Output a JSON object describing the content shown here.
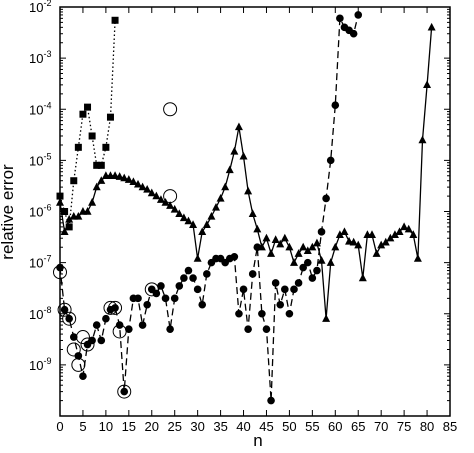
{
  "chart_data": {
    "type": "scatter",
    "title": "",
    "xlabel": "n",
    "ylabel": "relative error",
    "xlim": [
      0,
      85
    ],
    "ylim": [
      1e-10,
      0.01
    ],
    "yscale": "log",
    "grid": false,
    "x_ticks": [
      0,
      5,
      10,
      15,
      20,
      25,
      30,
      35,
      40,
      45,
      50,
      55,
      60,
      65,
      70,
      75,
      80,
      85
    ],
    "x_tick_labels": [
      "0",
      "5",
      "10",
      "15",
      "20",
      "25",
      "30",
      "35",
      "40",
      "45",
      "50",
      "55",
      "60",
      "65",
      "70",
      "75",
      "80",
      "85"
    ],
    "y_ticks": [
      1e-09,
      1e-08,
      1e-07,
      1e-06,
      1e-05,
      0.0001,
      0.001,
      0.01
    ],
    "y_tick_labels": [
      {
        "base": "10",
        "exp": "-9"
      },
      {
        "base": "10",
        "exp": "-8"
      },
      {
        "base": "10",
        "exp": "-7"
      },
      {
        "base": "10",
        "exp": "-6"
      },
      {
        "base": "10",
        "exp": "-5"
      },
      {
        "base": "10",
        "exp": "-4"
      },
      {
        "base": "10",
        "exp": "-3"
      },
      {
        "base": "10",
        "exp": "-2"
      }
    ],
    "series": [
      {
        "marker": "square",
        "line": "dotted",
        "points": [
          [
            0,
            2e-06
          ],
          [
            1,
            1e-06
          ],
          [
            2,
            5e-07
          ],
          [
            3,
            4e-06
          ],
          [
            4,
            1.8e-05
          ],
          [
            5,
            8e-05
          ],
          [
            6,
            0.00011
          ],
          [
            7,
            3e-05
          ],
          [
            8,
            8e-06
          ],
          [
            9,
            8e-06
          ],
          [
            10,
            1.8e-05
          ],
          [
            11,
            7e-05
          ],
          [
            12,
            0.0055
          ]
        ]
      },
      {
        "marker": "triangle",
        "line": "solid",
        "points": [
          [
            0,
            1.5e-06
          ],
          [
            1,
            4e-07
          ],
          [
            2,
            7e-07
          ],
          [
            3,
            8e-07
          ],
          [
            4,
            8e-07
          ],
          [
            5,
            1e-06
          ],
          [
            6,
            1e-06
          ],
          [
            7,
            1.5e-06
          ],
          [
            8,
            3e-06
          ],
          [
            9,
            4e-06
          ],
          [
            10,
            5e-06
          ],
          [
            11,
            5e-06
          ],
          [
            12,
            5e-06
          ],
          [
            13,
            4.8e-06
          ],
          [
            14,
            4.5e-06
          ],
          [
            15,
            4.2e-06
          ],
          [
            16,
            3.8e-06
          ],
          [
            17,
            3.4e-06
          ],
          [
            18,
            3e-06
          ],
          [
            19,
            2.7e-06
          ],
          [
            20,
            2.3e-06
          ],
          [
            21,
            2e-06
          ],
          [
            22,
            1.7e-06
          ],
          [
            23,
            1.5e-06
          ],
          [
            24,
            1.3e-06
          ],
          [
            25,
            1.1e-06
          ],
          [
            26,
            9e-07
          ],
          [
            27,
            7.5e-07
          ],
          [
            28,
            6.5e-07
          ],
          [
            29,
            5.5e-07
          ],
          [
            30,
            1.2e-07
          ],
          [
            31,
            4e-07
          ],
          [
            32,
            5.5e-07
          ],
          [
            33,
            8e-07
          ],
          [
            34,
            1.2e-06
          ],
          [
            35,
            1.8e-06
          ],
          [
            36,
            3e-06
          ],
          [
            37,
            6.5e-06
          ],
          [
            38,
            1.5e-05
          ],
          [
            39,
            4.5e-05
          ],
          [
            40,
            1.2e-05
          ],
          [
            41,
            2.5e-06
          ],
          [
            42,
            9e-07
          ],
          [
            43,
            4.5e-07
          ],
          [
            44,
            2e-07
          ],
          [
            45,
            3e-07
          ],
          [
            46,
            1.5e-07
          ],
          [
            47,
            2.8e-07
          ],
          [
            48,
            2.3e-07
          ],
          [
            49,
            3e-07
          ],
          [
            50,
            2e-07
          ],
          [
            51,
            1e-07
          ],
          [
            52,
            1.5e-07
          ],
          [
            53,
            2e-07
          ],
          [
            54,
            1.7e-07
          ],
          [
            55,
            2e-07
          ],
          [
            56,
            2.4e-07
          ],
          [
            57,
            1.1e-07
          ],
          [
            58,
            8e-09
          ],
          [
            59,
            1e-07
          ],
          [
            60,
            2e-07
          ],
          [
            61,
            3.5e-07
          ],
          [
            62,
            4e-07
          ],
          [
            63,
            2.6e-07
          ],
          [
            64,
            2.5e-07
          ],
          [
            65,
            2.2e-07
          ],
          [
            66,
            5e-08
          ],
          [
            67,
            3.5e-07
          ],
          [
            68,
            3.5e-07
          ],
          [
            69,
            1.5e-07
          ],
          [
            70,
            2.2e-07
          ],
          [
            71,
            2.5e-07
          ],
          [
            72,
            3e-07
          ],
          [
            73,
            3.5e-07
          ],
          [
            74,
            4e-07
          ],
          [
            75,
            5e-07
          ],
          [
            76,
            4.5e-07
          ],
          [
            77,
            3.5e-07
          ],
          [
            78,
            1.2e-07
          ],
          [
            79,
            2.5e-05
          ],
          [
            80,
            0.0003
          ],
          [
            81,
            0.004
          ]
        ]
      },
      {
        "marker": "filled-circle",
        "line": "dashed",
        "points": [
          [
            0,
            8e-08
          ],
          [
            1,
            1.2e-08
          ],
          [
            2,
            8e-09
          ],
          [
            3,
            3.5e-09
          ],
          [
            4,
            1.5e-09
          ],
          [
            5,
            6e-10
          ],
          [
            6,
            2.5e-09
          ],
          [
            7,
            3e-09
          ],
          [
            8,
            6e-09
          ],
          [
            9,
            3e-09
          ],
          [
            10,
            8e-09
          ],
          [
            11,
            1.2e-08
          ],
          [
            12,
            1.3e-08
          ],
          [
            13,
            6e-09
          ],
          [
            14,
            3e-10
          ],
          [
            15,
            5e-09
          ],
          [
            16,
            2e-08
          ],
          [
            17,
            2e-08
          ],
          [
            18,
            6e-09
          ],
          [
            19,
            1.5e-08
          ],
          [
            20,
            3e-08
          ],
          [
            21,
            2.5e-08
          ],
          [
            22,
            3.5e-08
          ],
          [
            23,
            2e-08
          ],
          [
            24,
            5e-09
          ],
          [
            25,
            2e-08
          ],
          [
            26,
            3.5e-08
          ],
          [
            27,
            5e-08
          ],
          [
            28,
            7e-08
          ],
          [
            29,
            5e-08
          ],
          [
            30,
            3e-08
          ],
          [
            31,
            1.5e-08
          ],
          [
            32,
            6e-08
          ],
          [
            33,
            1e-07
          ],
          [
            34,
            1.2e-07
          ],
          [
            35,
            1.2e-07
          ],
          [
            36,
            1e-07
          ],
          [
            37,
            1.2e-07
          ],
          [
            38,
            1.3e-07
          ],
          [
            39,
            1e-08
          ],
          [
            40,
            3e-08
          ],
          [
            41,
            5e-09
          ],
          [
            42,
            6e-08
          ],
          [
            43,
            2e-07
          ],
          [
            44,
            1e-08
          ],
          [
            45,
            5e-09
          ],
          [
            46,
            2e-10
          ],
          [
            47,
            4e-08
          ],
          [
            48,
            1.5e-08
          ],
          [
            49,
            3e-08
          ],
          [
            50,
            1e-08
          ],
          [
            51,
            3e-08
          ],
          [
            52,
            4e-08
          ],
          [
            53,
            8e-08
          ],
          [
            54,
            1e-07
          ],
          [
            55,
            5e-08
          ],
          [
            56,
            7e-08
          ],
          [
            57,
            4e-07
          ],
          [
            58,
            1.8e-06
          ],
          [
            59,
            1e-05
          ],
          [
            60,
            0.00012
          ],
          [
            61,
            0.006
          ],
          [
            62,
            0.004
          ],
          [
            63,
            0.0035
          ],
          [
            64,
            0.003
          ],
          [
            65,
            0.007
          ]
        ]
      },
      {
        "marker": "open-circle",
        "line": "none",
        "points": [
          [
            0,
            6.5e-08
          ],
          [
            1,
            1.2e-08
          ],
          [
            2,
            8e-09
          ],
          [
            3,
            2e-09
          ],
          [
            4,
            1e-09
          ],
          [
            5,
            3.5e-09
          ],
          [
            6,
            2.5e-09
          ],
          [
            11,
            1.3e-08
          ],
          [
            12,
            1.3e-08
          ],
          [
            13,
            4.5e-09
          ],
          [
            14,
            3e-10
          ],
          [
            20,
            3e-08
          ],
          [
            24,
            0.0001
          ],
          [
            24,
            2e-06
          ]
        ]
      }
    ]
  }
}
